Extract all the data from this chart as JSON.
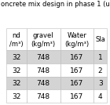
{
  "title": "oncrete mix design in phase 1 (u",
  "columns": [
    "nd\n/m³)",
    "gravel\n(kg/m³)",
    "Water\n(kg/m³)",
    "Sla"
  ],
  "rows": [
    [
      "32",
      "748",
      "167",
      "1"
    ],
    [
      "32",
      "748",
      "167",
      "2"
    ],
    [
      "32",
      "748",
      "167",
      "3"
    ],
    [
      "32",
      "748",
      "167",
      "4"
    ]
  ],
  "row_colors": [
    "#d4d4d4",
    "#ffffff",
    "#d4d4d4",
    "#ffffff"
  ],
  "header_color": "#ffffff",
  "title_fontsize": 6.0,
  "cell_fontsize": 6.5,
  "header_fontsize": 6.0,
  "fig_bg": "#ffffff",
  "border_color": "#bbbbbb"
}
